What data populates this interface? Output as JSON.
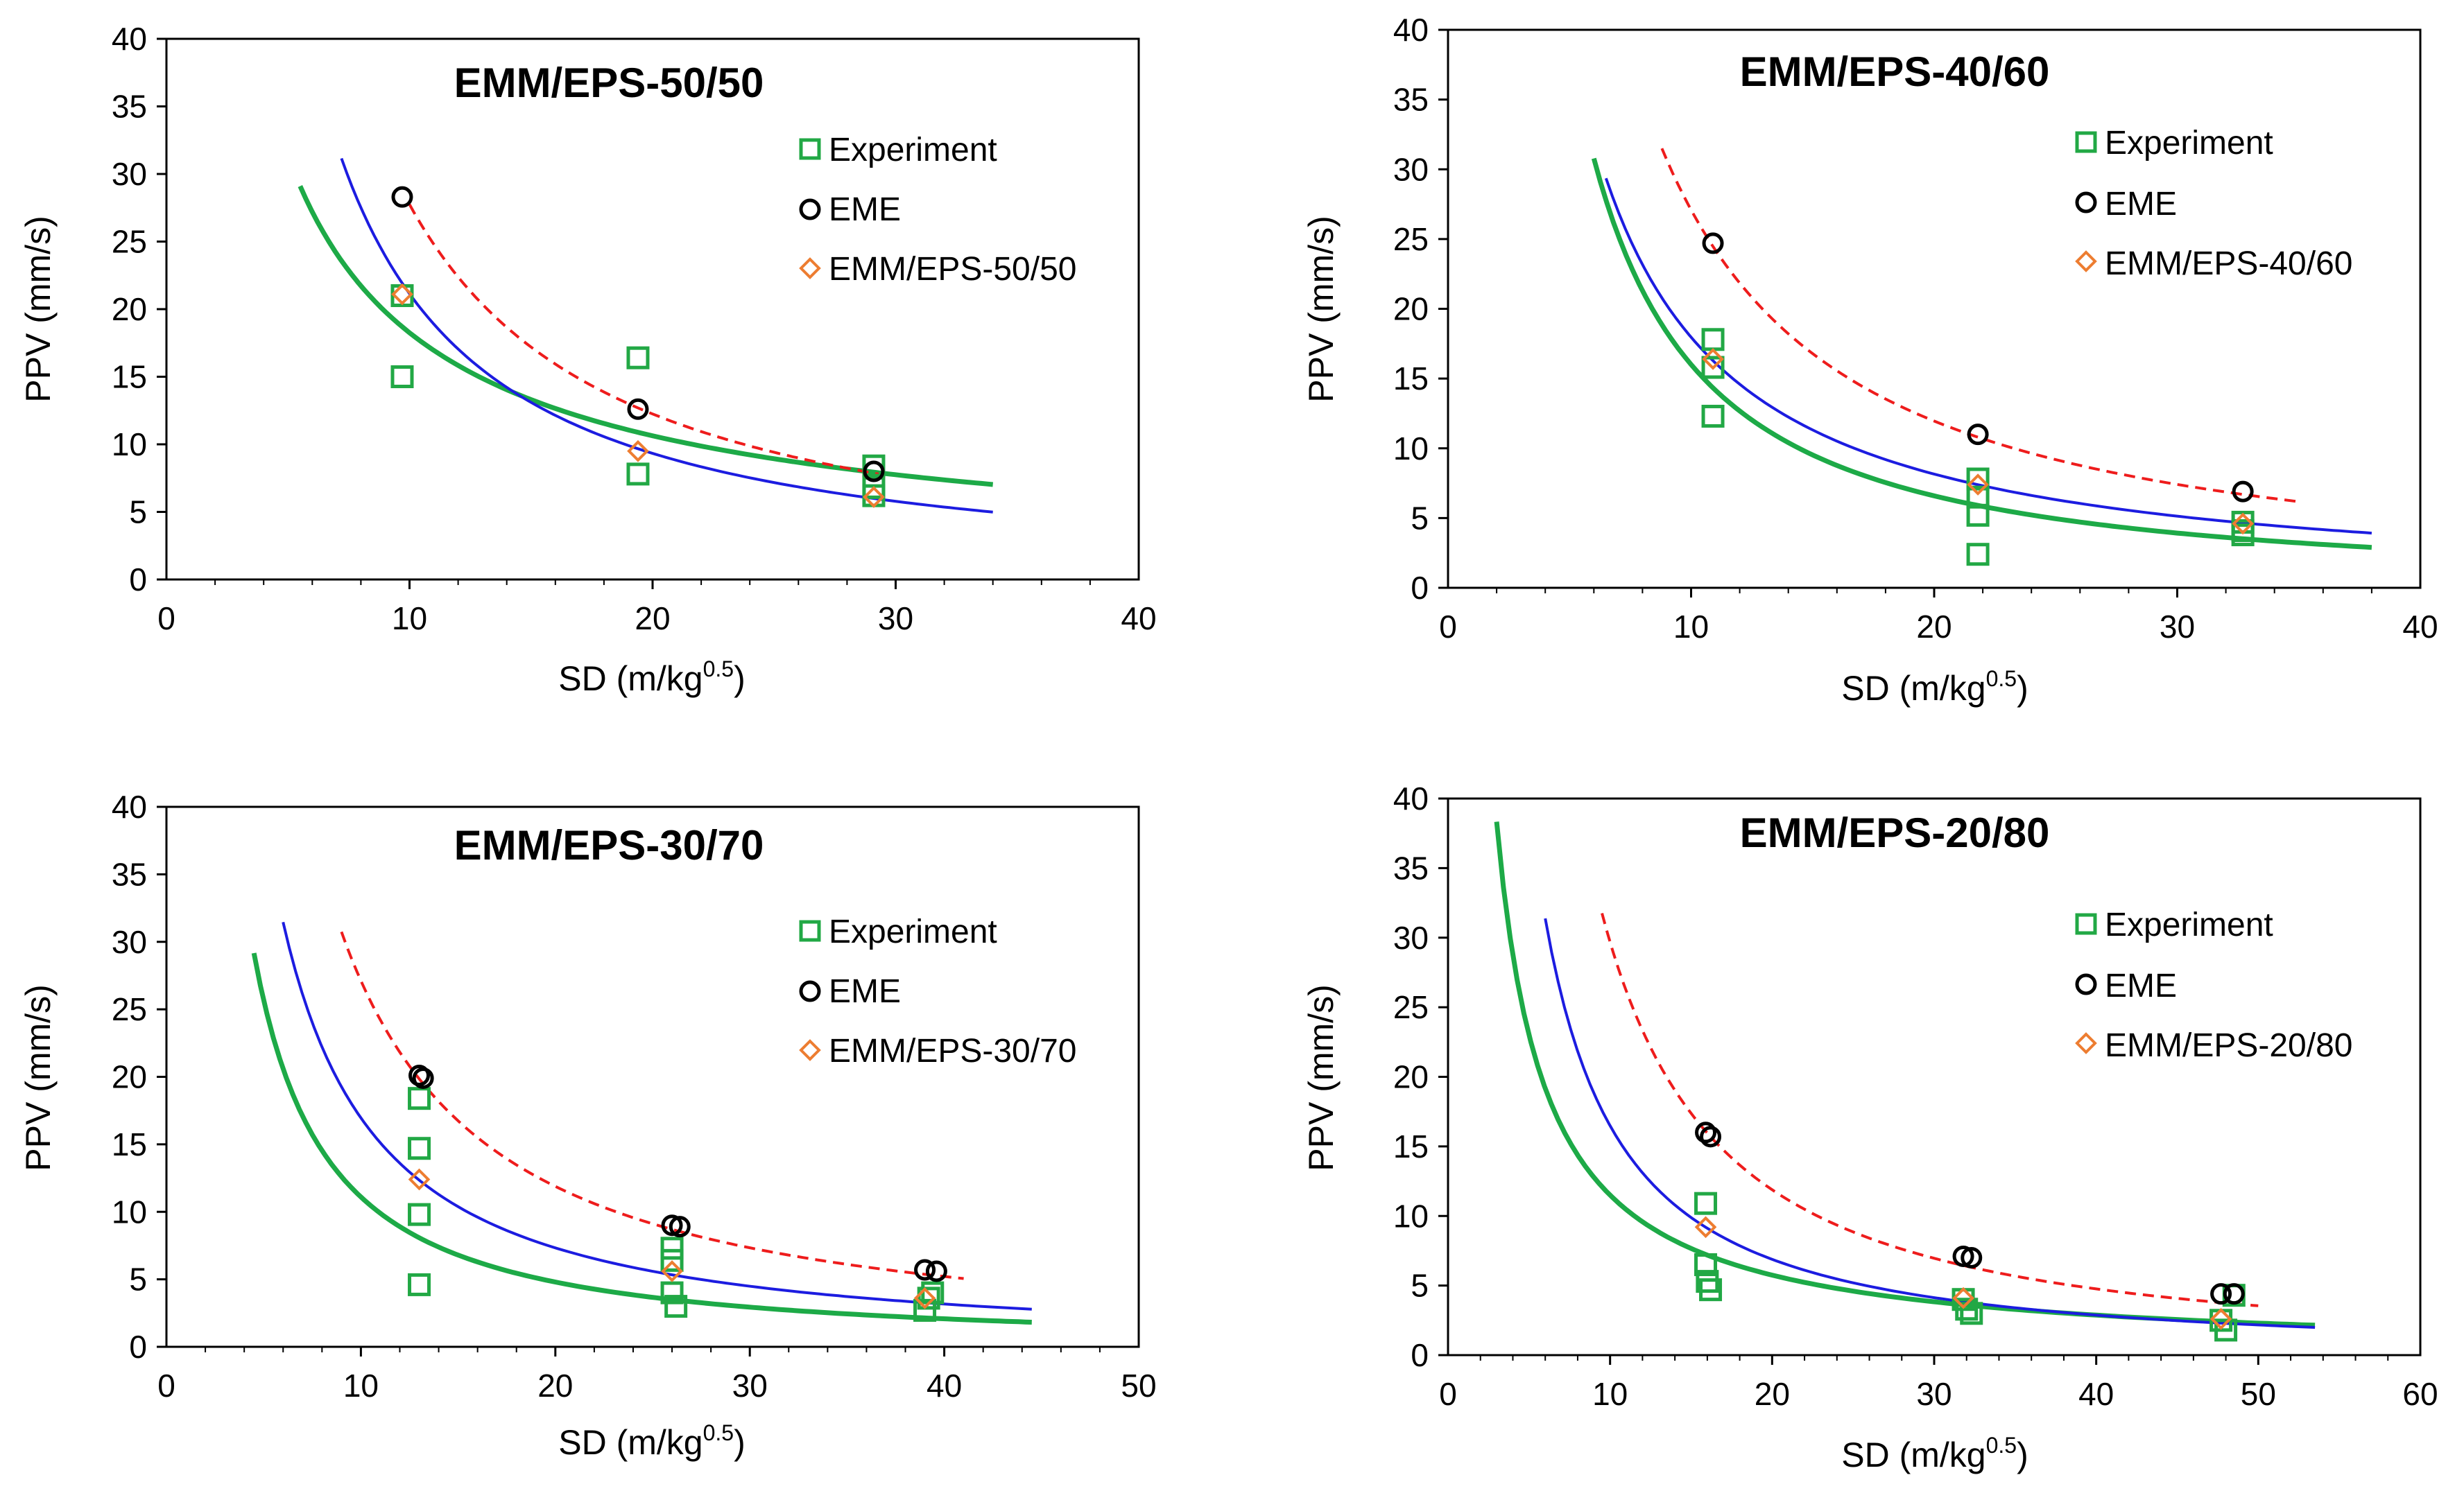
{
  "figure": {
    "description": "Four PPV vs scaled distance panels"
  },
  "colors": {
    "experiment": "#22a845",
    "eme": "#000000",
    "model": "#ed7d31",
    "fit_green": "#1daa47",
    "fit_blue": "#1c1ce0",
    "fit_red": "#ee1c1c"
  },
  "chart_data": [
    {
      "type": "scatter",
      "title": "EMM/EPS-50/50",
      "xlabel_main": "SD (m/kg",
      "xlabel_sup": "0.5",
      "xlabel_end": ")",
      "ylabel": "PPV (mm/s)",
      "xlim": [
        0,
        40
      ],
      "ylim": [
        0,
        40
      ],
      "xticks": [
        "0",
        "10",
        "20",
        "30",
        "40"
      ],
      "yticks": [
        "0",
        "5",
        "10",
        "15",
        "20",
        "25",
        "30",
        "35",
        "40"
      ],
      "legend": [
        "Experiment",
        "EME",
        "EMM/EPS-50/50"
      ],
      "series": [
        {
          "name": "Experiment",
          "marker": "square",
          "x": [
            9.7,
            9.7,
            19.4,
            19.4,
            29.1,
            29.1,
            29.1
          ],
          "y": [
            21.0,
            15.0,
            16.4,
            7.8,
            8.4,
            6.8,
            6.2
          ]
        },
        {
          "name": "EME",
          "marker": "circle",
          "x": [
            9.7,
            19.4,
            29.1
          ],
          "y": [
            28.3,
            12.6,
            8.0
          ]
        },
        {
          "name": "EMM/EPS-50/50",
          "marker": "diamond",
          "x": [
            9.7,
            19.4,
            29.1
          ],
          "y": [
            21.1,
            9.5,
            6.1
          ]
        }
      ],
      "fits": [
        {
          "name": "green",
          "k": 110,
          "b": 0.78,
          "xrange": [
            5.5,
            34
          ]
        },
        {
          "name": "blue",
          "k": 320,
          "b": 1.18,
          "xrange": [
            7.2,
            34
          ]
        },
        {
          "name": "red",
          "k": 420,
          "b": 1.18,
          "xrange": [
            10,
            29.3
          ]
        }
      ]
    },
    {
      "type": "scatter",
      "title": "EMM/EPS-40/60",
      "xlabel_main": "SD (m/kg",
      "xlabel_sup": "0.5",
      "xlabel_end": ")",
      "ylabel": "PPV (mm/s)",
      "xlim": [
        0,
        40
      ],
      "ylim": [
        0,
        40
      ],
      "xticks": [
        "0",
        "10",
        "20",
        "30",
        "40"
      ],
      "yticks": [
        "0",
        "5",
        "10",
        "15",
        "20",
        "25",
        "30",
        "35",
        "40"
      ],
      "legend": [
        "Experiment",
        "EME",
        "EMM/EPS-40/60"
      ],
      "series": [
        {
          "name": "Experiment",
          "marker": "square",
          "x": [
            10.9,
            10.9,
            10.9,
            21.8,
            21.8,
            21.8,
            21.8,
            32.7,
            32.7,
            32.7
          ],
          "y": [
            17.8,
            15.8,
            12.3,
            7.8,
            6.5,
            5.2,
            2.4,
            4.7,
            4.1,
            3.8
          ]
        },
        {
          "name": "EME",
          "marker": "circle",
          "x": [
            10.9,
            21.8,
            32.7
          ],
          "y": [
            24.7,
            11.0,
            6.9
          ]
        },
        {
          "name": "EMM/EPS-40/60",
          "marker": "diamond",
          "x": [
            10.9,
            21.8,
            32.7
          ],
          "y": [
            16.4,
            7.4,
            4.6
          ]
        }
      ],
      "fits": [
        {
          "name": "green",
          "k": 305,
          "b": 1.28,
          "xrange": [
            6.0,
            38
          ]
        },
        {
          "name": "blue",
          "k": 248,
          "b": 1.14,
          "xrange": [
            6.5,
            38
          ]
        },
        {
          "name": "red",
          "k": 410,
          "b": 1.18,
          "xrange": [
            8.8,
            35
          ]
        }
      ]
    },
    {
      "type": "scatter",
      "title": "EMM/EPS-30/70",
      "xlabel_main": "SD (m/kg",
      "xlabel_sup": "0.5",
      "xlabel_end": ")",
      "ylabel": "PPV (mm/s)",
      "xlim": [
        0,
        50
      ],
      "ylim": [
        0,
        40
      ],
      "xticks": [
        "0",
        "10",
        "20",
        "30",
        "40",
        "50"
      ],
      "yticks": [
        "0",
        "5",
        "10",
        "15",
        "20",
        "25",
        "30",
        "35",
        "40"
      ],
      "legend": [
        "Experiment",
        "EME",
        "EMM/EPS-30/70"
      ],
      "series": [
        {
          "name": "Experiment",
          "marker": "square",
          "x": [
            13.0,
            13.0,
            13.0,
            13.0,
            26.0,
            26.0,
            26.0,
            26.2,
            39.0,
            39.2,
            39.4
          ],
          "y": [
            18.4,
            14.7,
            9.8,
            4.6,
            7.3,
            6.4,
            4.0,
            3.0,
            2.7,
            3.6,
            4.0
          ]
        },
        {
          "name": "EME",
          "marker": "circle",
          "x": [
            13.0,
            13.2,
            26.0,
            26.4,
            39.0,
            39.6
          ],
          "y": [
            20.1,
            19.9,
            9.0,
            8.9,
            5.7,
            5.6
          ]
        },
        {
          "name": "EMM/EPS-30/70",
          "marker": "diamond",
          "x": [
            13.0,
            26.0,
            39.0
          ],
          "y": [
            12.4,
            5.6,
            3.6
          ]
        }
      ],
      "fits": [
        {
          "name": "green",
          "k": 180,
          "b": 1.21,
          "xrange": [
            4.5,
            44.5
          ]
        },
        {
          "name": "blue",
          "k": 275,
          "b": 1.21,
          "xrange": [
            6.0,
            44.5
          ]
        },
        {
          "name": "red",
          "k": 420,
          "b": 1.19,
          "xrange": [
            9.0,
            41
          ]
        }
      ]
    },
    {
      "type": "scatter",
      "title": "EMM/EPS-20/80",
      "xlabel_main": "SD (m/kg",
      "xlabel_sup": "0.5",
      "xlabel_end": ")",
      "ylabel": "PPV (mm/s)",
      "xlim": [
        0,
        60
      ],
      "ylim": [
        0,
        40
      ],
      "xticks": [
        "0",
        "10",
        "20",
        "30",
        "40",
        "50",
        "60"
      ],
      "yticks": [
        "0",
        "5",
        "10",
        "15",
        "20",
        "25",
        "30",
        "35",
        "40"
      ],
      "legend": [
        "Experiment",
        "EME",
        "EMM/EPS-20/80"
      ],
      "series": [
        {
          "name": "Experiment",
          "marker": "square",
          "x": [
            15.9,
            15.9,
            16.0,
            16.2,
            31.8,
            32.0,
            32.3,
            47.7,
            48.0,
            48.5
          ],
          "y": [
            10.9,
            6.5,
            5.3,
            4.7,
            4.0,
            3.3,
            3.0,
            2.5,
            1.8,
            4.3
          ]
        },
        {
          "name": "EME",
          "marker": "circle",
          "x": [
            15.9,
            16.2,
            31.8,
            32.3,
            47.7,
            48.5
          ],
          "y": [
            16.0,
            15.7,
            7.1,
            7.0,
            4.4,
            4.4
          ]
        },
        {
          "name": "EMM/EPS-20/80",
          "marker": "diamond",
          "x": [
            15.9,
            31.8,
            47.7
          ],
          "y": [
            9.2,
            4.1,
            2.6
          ]
        }
      ],
      "fits": [
        {
          "name": "green",
          "k": 115,
          "b": 1.0,
          "xrange": [
            3.0,
            53.5
          ]
        },
        {
          "name": "blue",
          "k": 300,
          "b": 1.26,
          "xrange": [
            6.0,
            53.5
          ]
        },
        {
          "name": "red",
          "k": 620,
          "b": 1.32,
          "xrange": [
            9.5,
            50
          ]
        }
      ]
    }
  ]
}
